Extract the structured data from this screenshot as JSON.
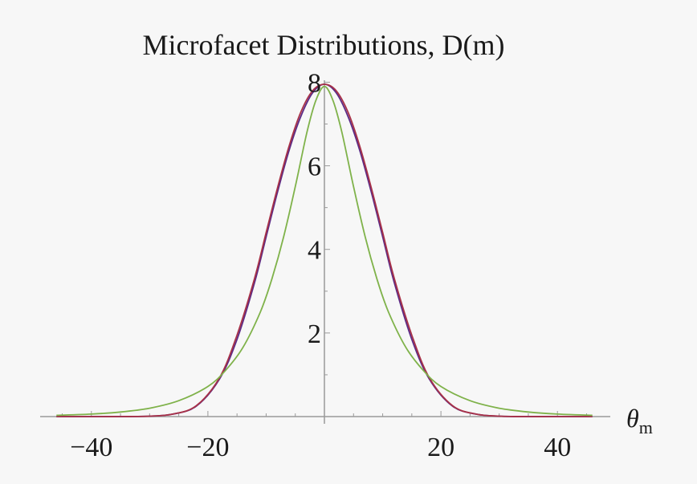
{
  "chart_data": {
    "type": "line",
    "title": "Microfacet Distributions, D(m)",
    "xlabel_main": "θ",
    "xlabel_sub": "m",
    "xlim": [
      -47,
      47
    ],
    "ylim": [
      0,
      8.2
    ],
    "xticks": [
      -40,
      -20,
      20,
      40
    ],
    "yticks": [
      2,
      4,
      6,
      8
    ],
    "grid": false,
    "colors": {
      "background": "#f7f7f7",
      "axis": "#9a9a9a",
      "purple": "#5b2a86",
      "red": "#a83248",
      "green": "#7fb24a"
    },
    "series": [
      {
        "color": "purple",
        "x": [
          -46,
          -40,
          -35,
          -30,
          -26,
          -22,
          -18,
          -15,
          -12,
          -10,
          -8,
          -6,
          -4,
          -2,
          0,
          2,
          4,
          6,
          8,
          10,
          12,
          15,
          18,
          22,
          26,
          30,
          35,
          40,
          46
        ],
        "y": [
          0,
          0,
          0,
          0.01,
          0.06,
          0.25,
          0.9,
          1.85,
          3.2,
          4.3,
          5.4,
          6.4,
          7.2,
          7.75,
          7.95,
          7.75,
          7.2,
          6.4,
          5.4,
          4.3,
          3.2,
          1.85,
          0.9,
          0.25,
          0.06,
          0.01,
          0,
          0,
          0
        ]
      },
      {
        "color": "red",
        "x": [
          -46,
          -40,
          -35,
          -30,
          -26,
          -22,
          -18,
          -15,
          -12,
          -10,
          -8,
          -6,
          -4,
          -2,
          0,
          2,
          4,
          6,
          8,
          10,
          12,
          15,
          18,
          22,
          26,
          30,
          35,
          40,
          46
        ],
        "y": [
          0,
          0,
          0,
          0.01,
          0.06,
          0.26,
          0.93,
          1.95,
          3.3,
          4.4,
          5.5,
          6.5,
          7.3,
          7.8,
          7.95,
          7.8,
          7.3,
          6.5,
          5.5,
          4.4,
          3.3,
          1.95,
          0.93,
          0.26,
          0.06,
          0.01,
          0,
          0,
          0
        ]
      },
      {
        "color": "green",
        "x": [
          -46,
          -40,
          -35,
          -30,
          -25,
          -20,
          -17,
          -14,
          -11,
          -9,
          -7,
          -5,
          -3,
          -1.5,
          0,
          1.5,
          3,
          5,
          7,
          9,
          11,
          14,
          17,
          20,
          25,
          30,
          35,
          40,
          46
        ],
        "y": [
          0.03,
          0.06,
          0.11,
          0.2,
          0.38,
          0.72,
          1.1,
          1.65,
          2.5,
          3.3,
          4.3,
          5.5,
          6.8,
          7.55,
          7.9,
          7.55,
          6.8,
          5.5,
          4.3,
          3.3,
          2.5,
          1.65,
          1.1,
          0.72,
          0.38,
          0.2,
          0.11,
          0.06,
          0.03
        ]
      }
    ]
  }
}
